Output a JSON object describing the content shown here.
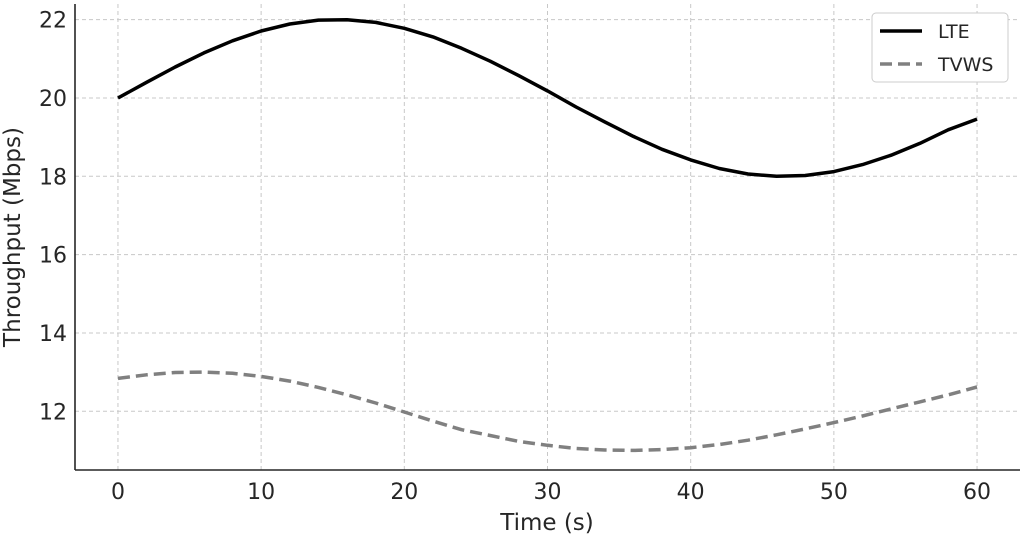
{
  "chart_data": {
    "type": "line",
    "title": "",
    "xlabel": "Time (s)",
    "ylabel": "Throughput (Mbps)",
    "xlim": [
      -3,
      63
    ],
    "ylim": [
      10.5,
      22.4
    ],
    "xticks": [
      0,
      10,
      20,
      30,
      40,
      50,
      60
    ],
    "yticks": [
      12,
      14,
      16,
      18,
      20,
      22
    ],
    "grid": true,
    "legend_position": "top-right",
    "x": [
      0,
      2,
      4,
      6,
      8,
      10,
      12,
      14,
      16,
      18,
      20,
      22,
      24,
      26,
      28,
      30,
      32,
      34,
      36,
      38,
      40,
      42,
      44,
      46,
      48,
      50,
      52,
      54,
      56,
      58,
      60
    ],
    "series": [
      {
        "name": "LTE",
        "style": "solid",
        "color": "#000000",
        "values": [
          20.0,
          20.4,
          20.79,
          21.15,
          21.46,
          21.71,
          21.89,
          21.99,
          22.0,
          21.93,
          21.78,
          21.56,
          21.27,
          20.94,
          20.57,
          20.18,
          19.77,
          19.39,
          19.02,
          18.69,
          18.42,
          18.2,
          18.06,
          18.0,
          18.02,
          18.12,
          18.3,
          18.54,
          18.84,
          19.19,
          19.46
        ]
      },
      {
        "name": "TVWS",
        "style": "dashed",
        "color": "#808080",
        "values": [
          12.84,
          12.93,
          12.99,
          13.0,
          12.97,
          12.89,
          12.77,
          12.61,
          12.42,
          12.21,
          11.98,
          11.75,
          11.53,
          11.38,
          11.23,
          11.13,
          11.05,
          11.01,
          11.0,
          11.02,
          11.07,
          11.15,
          11.26,
          11.4,
          11.55,
          11.71,
          11.88,
          12.06,
          12.24,
          12.42,
          12.62
        ]
      }
    ]
  }
}
